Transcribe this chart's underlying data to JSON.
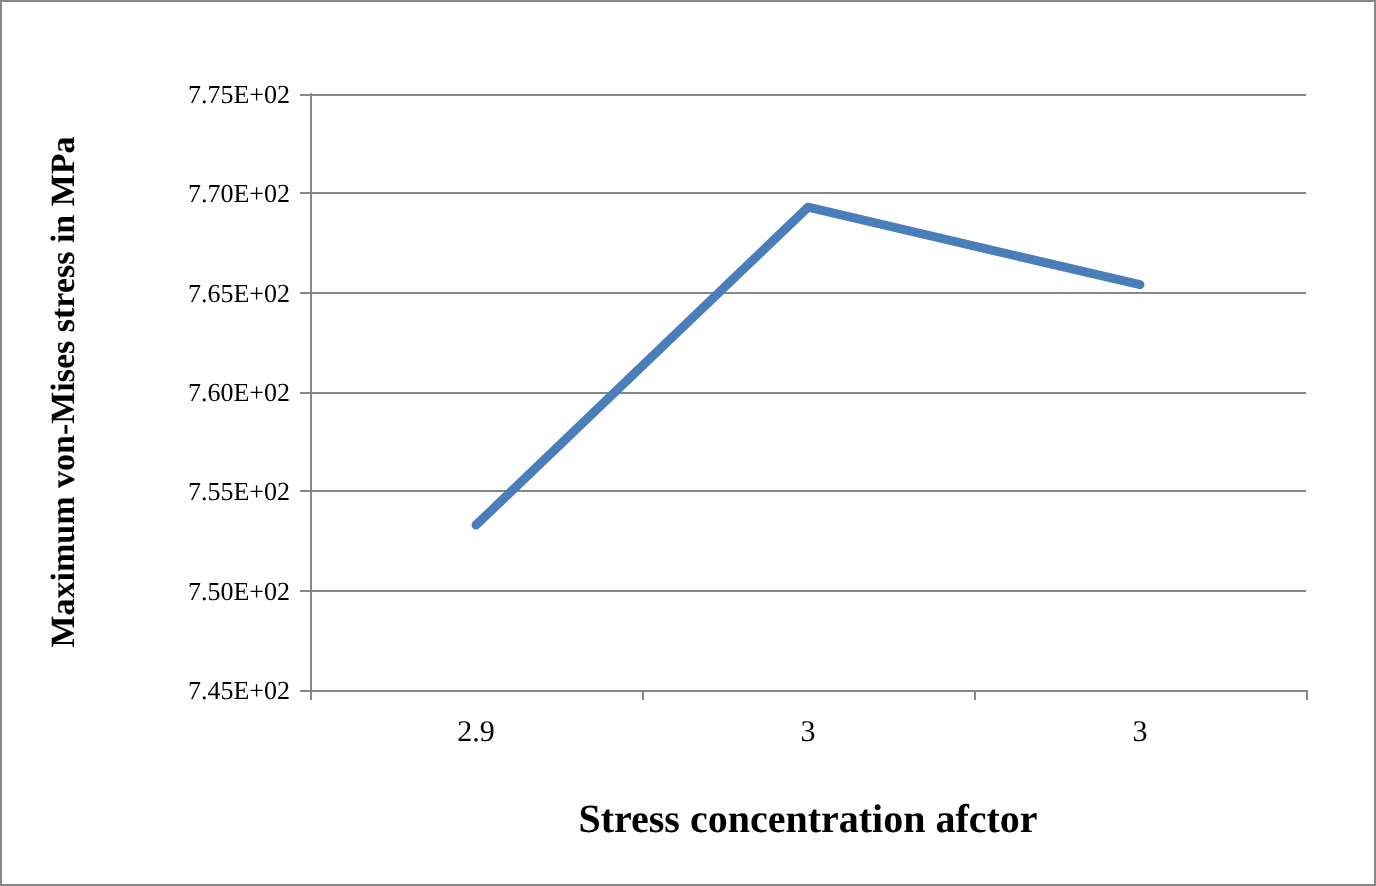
{
  "chart_data": {
    "type": "line",
    "xlabel": "Stress concentration afctor",
    "ylabel": "Maximum von-Mises stress in MPa",
    "categories": [
      "2.9",
      "3",
      "3"
    ],
    "series": [
      {
        "color": "#4a7ebb",
        "values": [
          753.3,
          769.3,
          765.4
        ]
      }
    ],
    "ylim": [
      745,
      775
    ],
    "yticks": [
      {
        "value": 745,
        "label": "7.45E+02"
      },
      {
        "value": 750,
        "label": "7.50E+02"
      },
      {
        "value": 755,
        "label": "7.55E+02"
      },
      {
        "value": 760,
        "label": "7.60E+02"
      },
      {
        "value": 765,
        "label": "7.65E+02"
      },
      {
        "value": 770,
        "label": "7.70E+02"
      },
      {
        "value": 775,
        "label": "7.75E+02"
      }
    ],
    "grid": "y",
    "marker": "none",
    "line_style": "solid"
  }
}
